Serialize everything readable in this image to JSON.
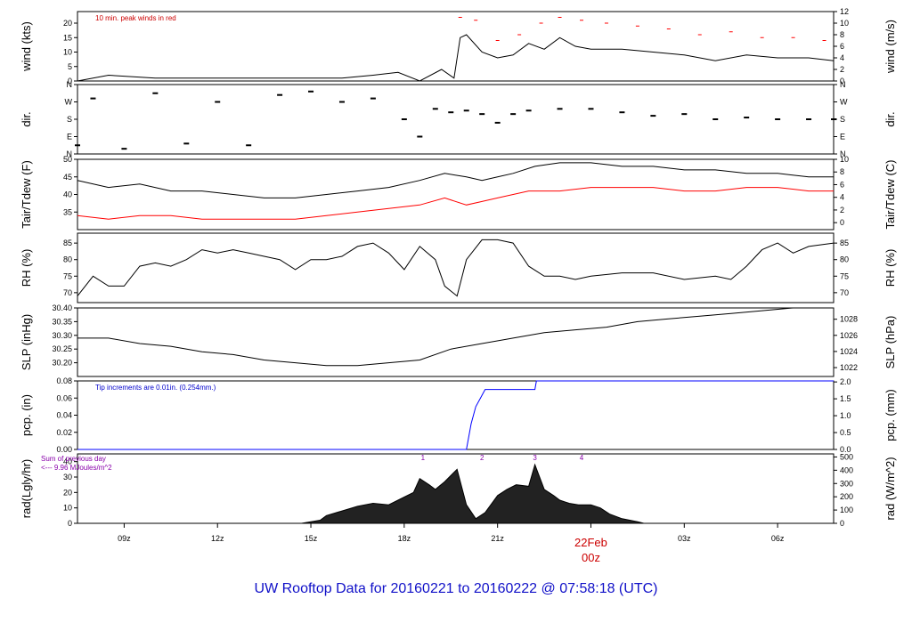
{
  "title": "UW Rooftop Data for 20160221  to  20160222 @ 07:58:18  (UTC)",
  "x_axis": {
    "ticks": [
      "09z",
      "12z",
      "15z",
      "18z",
      "21z",
      "03z",
      "06z"
    ],
    "day_label": "22Feb",
    "day_hour": "00z"
  },
  "chart_data": [
    {
      "type": "line",
      "id": "wind",
      "ylabel_left": "wind (kts)",
      "ylabel_right": "wind (m/s)",
      "ylim": [
        0,
        24
      ],
      "yticks": [
        0,
        5,
        10,
        15,
        20
      ],
      "right_ylim": [
        0,
        12
      ],
      "right_yticks": [
        0,
        2,
        4,
        6,
        8,
        10,
        12
      ],
      "annotation": "10 min. peak winds in red",
      "series": [
        {
          "color": "#000000",
          "x": [
            7.5,
            8.5,
            10,
            12,
            14,
            16,
            17,
            17.8,
            18.5,
            19.2,
            19.6,
            19.8,
            20,
            20.5,
            21,
            21.5,
            22,
            22.5,
            23,
            23.5,
            24,
            25,
            26,
            27,
            28,
            29,
            30,
            31,
            31.8
          ],
          "values": [
            0,
            2,
            1,
            1,
            1,
            1,
            2,
            3,
            0,
            4,
            1,
            15,
            16,
            10,
            8,
            9,
            13,
            11,
            15,
            12,
            11,
            11,
            10,
            9,
            7,
            9,
            8,
            8,
            7
          ]
        }
      ],
      "peaks": [
        {
          "color": "#ff0000",
          "x": [
            19.8,
            20.3,
            21,
            21.7,
            22.4,
            23,
            23.7,
            24.5,
            25.5,
            26.5,
            27.5,
            28.5,
            29.5,
            30.5,
            31.5
          ],
          "values": [
            22,
            21,
            14,
            16,
            20,
            22,
            21,
            20,
            19,
            18,
            16,
            17,
            15,
            15,
            14
          ]
        }
      ]
    },
    {
      "type": "scatter",
      "id": "dir",
      "ylabel_left": "dir.",
      "ylabel_right": "dir.",
      "ylim": [
        0,
        4
      ],
      "yticklabels": [
        "N",
        "E",
        "S",
        "W",
        "N"
      ],
      "series": [
        {
          "color": "#000000",
          "x": [
            7.5,
            8,
            9,
            10,
            11,
            12,
            13,
            14,
            15,
            16,
            17,
            18,
            18.5,
            19,
            19.5,
            20,
            20.5,
            21,
            21.5,
            22,
            23,
            24,
            25,
            26,
            27,
            28,
            29,
            30,
            31,
            31.8
          ],
          "values": [
            0.5,
            3.2,
            0.3,
            3.5,
            0.6,
            3.0,
            0.5,
            3.4,
            3.6,
            3.0,
            3.2,
            2.0,
            1.0,
            2.6,
            2.4,
            2.5,
            2.3,
            1.8,
            2.3,
            2.5,
            2.6,
            2.6,
            2.4,
            2.2,
            2.3,
            2.0,
            2.1,
            2.0,
            2.0,
            2.0
          ]
        }
      ]
    },
    {
      "type": "line",
      "id": "temp",
      "ylabel_left": "Tair/Tdew (F)",
      "ylabel_right": "Tair/Tdew (C)",
      "ylim": [
        30,
        50
      ],
      "yticks": [
        35,
        40,
        45,
        50
      ],
      "right_ylim": [
        -1.1,
        10
      ],
      "right_yticks": [
        0,
        2,
        4,
        6,
        8,
        10
      ],
      "series": [
        {
          "color": "#000000",
          "x": [
            7.5,
            8.5,
            9.5,
            10.5,
            11.5,
            12.5,
            13.5,
            14.5,
            15.5,
            16.5,
            17.5,
            18.5,
            19.3,
            20,
            20.5,
            21,
            21.5,
            22.2,
            23,
            24,
            25,
            26,
            27,
            28,
            29,
            30,
            31,
            31.8
          ],
          "values": [
            44,
            42,
            43,
            41,
            41,
            40,
            39,
            39,
            40,
            41,
            42,
            44,
            46,
            45,
            44,
            45,
            46,
            48,
            49,
            49,
            48,
            48,
            47,
            47,
            46,
            46,
            45,
            45
          ]
        },
        {
          "color": "#ff0000",
          "x": [
            7.5,
            8.5,
            9.5,
            10.5,
            11.5,
            12.5,
            13.5,
            14.5,
            15.5,
            16.5,
            17.5,
            18.5,
            19.3,
            20,
            20.5,
            21,
            22,
            23,
            24,
            25,
            26,
            27,
            28,
            29,
            30,
            31,
            31.8
          ],
          "values": [
            34,
            33,
            34,
            34,
            33,
            33,
            33,
            33,
            34,
            35,
            36,
            37,
            39,
            37,
            38,
            39,
            41,
            41,
            42,
            42,
            42,
            41,
            41,
            42,
            42,
            41,
            41
          ]
        }
      ]
    },
    {
      "type": "line",
      "id": "rh",
      "ylabel_left": "RH (%)",
      "ylabel_right": "RH (%)",
      "ylim": [
        67,
        88
      ],
      "yticks": [
        70,
        75,
        80,
        85
      ],
      "right_yticks": [
        70,
        75,
        80,
        85
      ],
      "series": [
        {
          "color": "#000000",
          "x": [
            7.5,
            8,
            8.5,
            9,
            9.5,
            10,
            10.5,
            11,
            11.5,
            12,
            12.5,
            13,
            13.5,
            14,
            14.5,
            15,
            15.5,
            16,
            16.5,
            17,
            17.5,
            18,
            18.5,
            19,
            19.3,
            19.7,
            20,
            20.5,
            21,
            21.5,
            22,
            22.5,
            23,
            23.5,
            24,
            25,
            26,
            27,
            28,
            28.5,
            29,
            29.5,
            30,
            30.5,
            31,
            31.8
          ],
          "values": [
            69,
            75,
            72,
            72,
            78,
            79,
            78,
            80,
            83,
            82,
            83,
            82,
            81,
            80,
            77,
            80,
            80,
            81,
            84,
            85,
            82,
            77,
            84,
            80,
            72,
            69,
            80,
            86,
            86,
            85,
            78,
            75,
            75,
            74,
            75,
            76,
            76,
            74,
            75,
            74,
            78,
            83,
            85,
            82,
            84,
            85
          ]
        }
      ]
    },
    {
      "type": "line",
      "id": "slp",
      "ylabel_left": "SLP (inHg)",
      "ylabel_right": "SLP (hPa)",
      "ylim": [
        30.15,
        30.4
      ],
      "yticks": [
        30.2,
        30.25,
        30.3,
        30.35,
        30.4
      ],
      "right_ylim": [
        1020.9,
        1029.4
      ],
      "right_yticks": [
        1022,
        1024,
        1026,
        1028
      ],
      "series": [
        {
          "color": "#000000",
          "x": [
            7.5,
            8.5,
            9.5,
            10.5,
            11.5,
            12.5,
            13.5,
            14.5,
            15.5,
            16.5,
            17.5,
            18.5,
            19.5,
            20.5,
            21.5,
            22.5,
            23.5,
            24.5,
            25.5,
            26.5,
            27.5,
            28.5,
            29.5,
            30.5,
            31.5,
            31.8
          ],
          "values": [
            30.29,
            30.29,
            30.27,
            30.26,
            30.24,
            30.23,
            30.21,
            30.2,
            30.19,
            30.19,
            30.2,
            30.21,
            30.25,
            30.27,
            30.29,
            30.31,
            30.32,
            30.33,
            30.35,
            30.36,
            30.37,
            30.38,
            30.39,
            30.4,
            30.4,
            30.4
          ]
        }
      ]
    },
    {
      "type": "line",
      "id": "pcp",
      "ylabel_left": "pcp. (in)",
      "ylabel_right": "pcp. (mm)",
      "ylim": [
        0,
        0.08
      ],
      "yticks": [
        0.0,
        0.02,
        0.04,
        0.06,
        0.08
      ],
      "right_ylim": [
        0,
        2.03
      ],
      "right_yticks": [
        0,
        0.5,
        1,
        1.5,
        2
      ],
      "annotation": "Tip increments are 0.01in. (0.254mm.)",
      "series": [
        {
          "color": "#0000ff",
          "x": [
            7.5,
            20.0,
            20.15,
            20.3,
            20.45,
            20.6,
            22.2,
            22.25,
            31.8
          ],
          "values": [
            0,
            0,
            0.03,
            0.05,
            0.06,
            0.07,
            0.07,
            0.08,
            0.08
          ]
        }
      ]
    },
    {
      "type": "area",
      "id": "rad",
      "ylabel_left": "rad(Lgly/hr)",
      "ylabel_right": "rad (W/m^2)",
      "ylim": [
        0,
        45
      ],
      "yticks": [
        0,
        10,
        20,
        30,
        40
      ],
      "right_ylim": [
        0,
        523
      ],
      "right_yticks": [
        0,
        100,
        200,
        300,
        400,
        500
      ],
      "annotation_lines": [
        "Sum of previous day",
        "<--- 9.96 MJoules/m^2"
      ],
      "markers": [
        "1",
        "2",
        "3",
        "4"
      ],
      "marker_x": [
        18.6,
        20.5,
        22.2,
        23.7
      ],
      "series": [
        {
          "color": "#000000",
          "x": [
            14.7,
            15.0,
            15.3,
            15.5,
            16,
            16.5,
            17,
            17.5,
            18,
            18.3,
            18.5,
            18.8,
            19,
            19.3,
            19.7,
            20,
            20.3,
            20.6,
            21,
            21.3,
            21.6,
            22,
            22.2,
            22.5,
            22.8,
            23,
            23.3,
            23.6,
            24,
            24.3,
            24.6,
            25,
            25.5,
            25.7
          ],
          "values": [
            0,
            1,
            2,
            5,
            8,
            11,
            13,
            12,
            17,
            20,
            29,
            25,
            22,
            27,
            35,
            12,
            3,
            7,
            18,
            22,
            25,
            24,
            38,
            22,
            18,
            15,
            13,
            12,
            12,
            10,
            6,
            3,
            1,
            0
          ]
        }
      ]
    }
  ]
}
